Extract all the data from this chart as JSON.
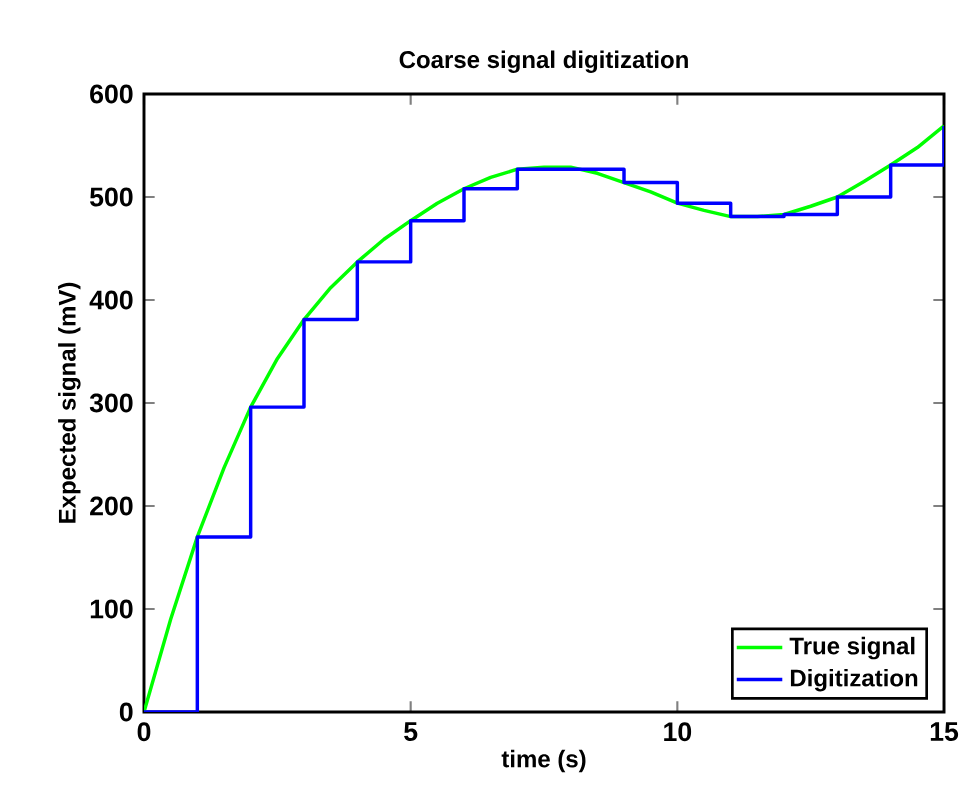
{
  "chart_data": {
    "type": "line",
    "title": "Coarse signal digitization",
    "xlabel": "time (s)",
    "ylabel": "Expected signal (mV)",
    "xlim": [
      0,
      15
    ],
    "ylim": [
      0,
      600
    ],
    "xticks": [
      0,
      5,
      10,
      15
    ],
    "yticks": [
      0,
      100,
      200,
      300,
      400,
      500,
      600
    ],
    "legend": "bottom right",
    "marker": "none",
    "line_style": "solid",
    "series": [
      {
        "name": "True signal",
        "color": "#00ff00",
        "x": [
          0,
          0.5,
          1,
          1.5,
          2,
          2.5,
          3,
          3.5,
          4,
          4.5,
          5,
          5.5,
          6,
          6.5,
          7,
          7.5,
          8,
          8.5,
          9,
          9.5,
          10,
          10.5,
          11,
          11.5,
          12,
          12.5,
          13,
          13.5,
          14,
          14.5,
          15
        ],
        "values": [
          0,
          90,
          170,
          237,
          296,
          343,
          381,
          412,
          437,
          459,
          477,
          494,
          508,
          519,
          527,
          529,
          529,
          523,
          514,
          505,
          494,
          487,
          481,
          481,
          483,
          491,
          500,
          515,
          531,
          548,
          569
        ]
      },
      {
        "name": "Digitization",
        "type": "step",
        "color": "#0000ff",
        "x": [
          0,
          1,
          2,
          3,
          4,
          5,
          6,
          7,
          8,
          9,
          10,
          11,
          12,
          13,
          14,
          15
        ],
        "values": [
          0,
          170,
          296,
          381,
          437,
          477,
          508,
          527,
          527,
          514,
          494,
          481,
          483,
          500,
          531,
          569
        ]
      }
    ]
  }
}
